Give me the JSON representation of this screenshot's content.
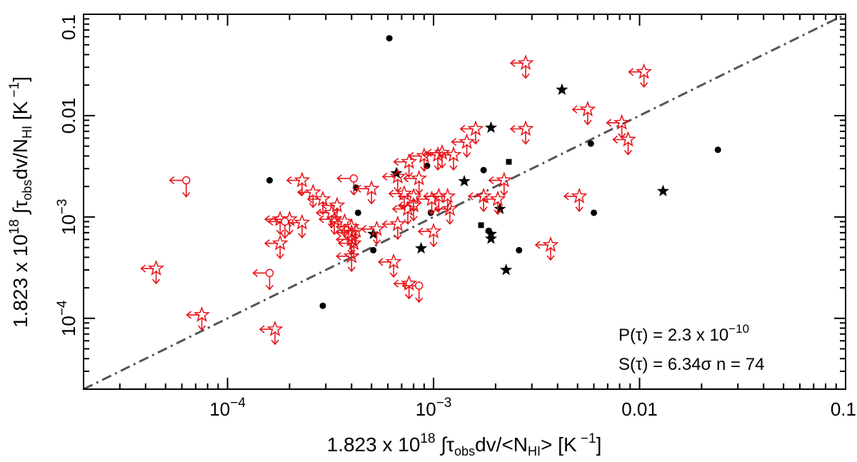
{
  "chart_data": {
    "type": "scatter",
    "xlabel": "1.823 x 10^18 ∫τ_obs dv/<N_HI> [K^-1]",
    "ylabel": "1.823 x 10^18 ∫τ_obs dv/N_HI [K^-1]",
    "xlabel_parts": {
      "lead": "1.823 x 10",
      "exp": "18",
      "integral": " ∫τ",
      "sub": "obs",
      "mid": "dv/<N",
      "sub2": "HI",
      "tail": ">  [K",
      "exp2": " −1",
      "close": "]"
    },
    "ylabel_parts": {
      "lead": "1.823 x 10",
      "exp": "18",
      "integral": " ∫τ",
      "sub": "obs",
      "mid": "dv/N",
      "sub2": "HI",
      "tail": "  [K",
      "exp2": " −1",
      "close": "]"
    },
    "xscale": "log",
    "yscale": "log",
    "xlim": [
      2e-05,
      0.1
    ],
    "ylim": [
      2e-05,
      0.1
    ],
    "xticks": [
      {
        "value": 0.0001,
        "base": "10",
        "exp": "−4"
      },
      {
        "value": 0.001,
        "base": "10",
        "exp": "−3"
      },
      {
        "value": 0.01,
        "label": "0.01"
      },
      {
        "value": 0.1,
        "label": "0.1"
      }
    ],
    "yticks": [
      {
        "value": 0.0001,
        "base": "10",
        "exp": "−4"
      },
      {
        "value": 0.001,
        "base": "10",
        "exp": "−3"
      },
      {
        "value": 0.01,
        "label": "0.01"
      },
      {
        "value": 0.1,
        "label": "0.1"
      }
    ],
    "reference_line": {
      "type": "one-to-one",
      "style": "dash-dot",
      "color": "#555555"
    },
    "annotations": [
      {
        "lead": "P(τ) = 2.3 x 10",
        "exp": "−10"
      },
      {
        "lead": "S(τ) = 6.34σ  n = 74"
      }
    ],
    "colors": {
      "detection": "#000000",
      "upper_limit": "#e8141a"
    },
    "series": [
      {
        "name": "detections (circles)",
        "marker": "filled-circle",
        "points": [
          [
            0.00061,
            0.058
          ],
          [
            0.00016,
            0.0023
          ],
          [
            0.00042,
            0.00195
          ],
          [
            0.00043,
            0.0011
          ],
          [
            0.00093,
            0.0032
          ],
          [
            0.00097,
            0.0011
          ],
          [
            0.00175,
            0.0029
          ],
          [
            0.00051,
            0.00047
          ],
          [
            0.00029,
            0.000133
          ],
          [
            0.00185,
            0.00073
          ],
          [
            0.0026,
            0.00047
          ],
          [
            0.0058,
            0.0053
          ],
          [
            0.006,
            0.0011
          ],
          [
            0.024,
            0.0046
          ]
        ]
      },
      {
        "name": "detections (stars)",
        "marker": "filled-star",
        "points": [
          [
            0.0019,
            0.0076
          ],
          [
            0.0042,
            0.018
          ],
          [
            0.00141,
            0.00225
          ],
          [
            0.0021,
            0.0012
          ],
          [
            0.00066,
            0.0027
          ],
          [
            0.013,
            0.0018
          ],
          [
            0.00051,
            0.00068
          ],
          [
            0.00087,
            0.00049
          ],
          [
            0.0019,
            0.00068
          ],
          [
            0.0019,
            0.00061
          ],
          [
            0.00225,
            0.0003
          ]
        ]
      },
      {
        "name": "detections (squares)",
        "marker": "filled-square",
        "points": [
          [
            0.00232,
            0.0035
          ],
          [
            0.0017,
            0.00083
          ]
        ]
      },
      {
        "name": "upper limits (stars)",
        "marker": "open-star-with-arrows",
        "points": [
          [
            0.0028,
            0.033
          ],
          [
            0.0105,
            0.027
          ],
          [
            0.0056,
            0.0115
          ],
          [
            0.0082,
            0.0085
          ],
          [
            0.0088,
            0.0058
          ],
          [
            0.0016,
            0.0074
          ],
          [
            0.0028,
            0.0074
          ],
          [
            0.00145,
            0.0055
          ],
          [
            0.0011,
            0.0043
          ],
          [
            0.00105,
            0.0041
          ],
          [
            0.0009,
            0.004
          ],
          [
            0.00125,
            0.0041
          ],
          [
            0.00076,
            0.0035
          ],
          [
            0.00067,
            0.0025
          ],
          [
            0.00085,
            0.0024
          ],
          [
            0.0005,
            0.0019
          ],
          [
            0.00072,
            0.0017
          ],
          [
            0.0008,
            0.0016
          ],
          [
            0.0008,
            0.0013
          ],
          [
            0.00098,
            0.0015
          ],
          [
            0.00106,
            0.0016
          ],
          [
            0.00117,
            0.0016
          ],
          [
            0.0012,
            0.0012
          ],
          [
            0.00075,
            0.0012
          ],
          [
            0.00023,
            0.0023
          ],
          [
            0.00018,
            0.00095
          ],
          [
            0.0002,
            0.00095
          ],
          [
            0.00023,
            0.00088
          ],
          [
            0.00029,
            0.0015
          ],
          [
            0.00034,
            0.0013
          ],
          [
            0.00032,
            0.0011
          ],
          [
            0.00033,
            0.00095
          ],
          [
            0.00037,
            0.0009
          ],
          [
            0.0004,
            0.0008
          ],
          [
            0.0004,
            0.0007
          ],
          [
            0.00042,
            0.00073
          ],
          [
            0.00067,
            0.00085
          ],
          [
            0.00053,
            0.00076
          ],
          [
            0.001,
            0.00072
          ],
          [
            0.00026,
            0.00175
          ],
          [
            0.00018,
            0.00055
          ],
          [
            0.0004,
            0.00041
          ],
          [
            0.00064,
            0.00036
          ],
          [
            0.00076,
            0.00022
          ],
          [
            0.00175,
            0.0016
          ],
          [
            0.00205,
            0.0015
          ],
          [
            0.0022,
            0.0023
          ],
          [
            0.0051,
            0.0016
          ],
          [
            0.0037,
            0.00053
          ],
          [
            4.5e-05,
            0.00031
          ],
          [
            7.5e-05,
            0.000108
          ],
          [
            0.00017,
            7.8e-05
          ],
          [
            0.0004,
            0.0006
          ],
          [
            0.00041,
            0.00055
          ]
        ]
      },
      {
        "name": "upper limits (circles)",
        "marker": "open-circle-with-arrows",
        "points": [
          [
            6.3e-05,
            0.0023
          ],
          [
            0.00041,
            0.0024
          ],
          [
            0.00019,
            0.0009
          ],
          [
            0.00016,
            0.00028
          ],
          [
            0.00085,
            0.00021
          ]
        ]
      }
    ]
  }
}
